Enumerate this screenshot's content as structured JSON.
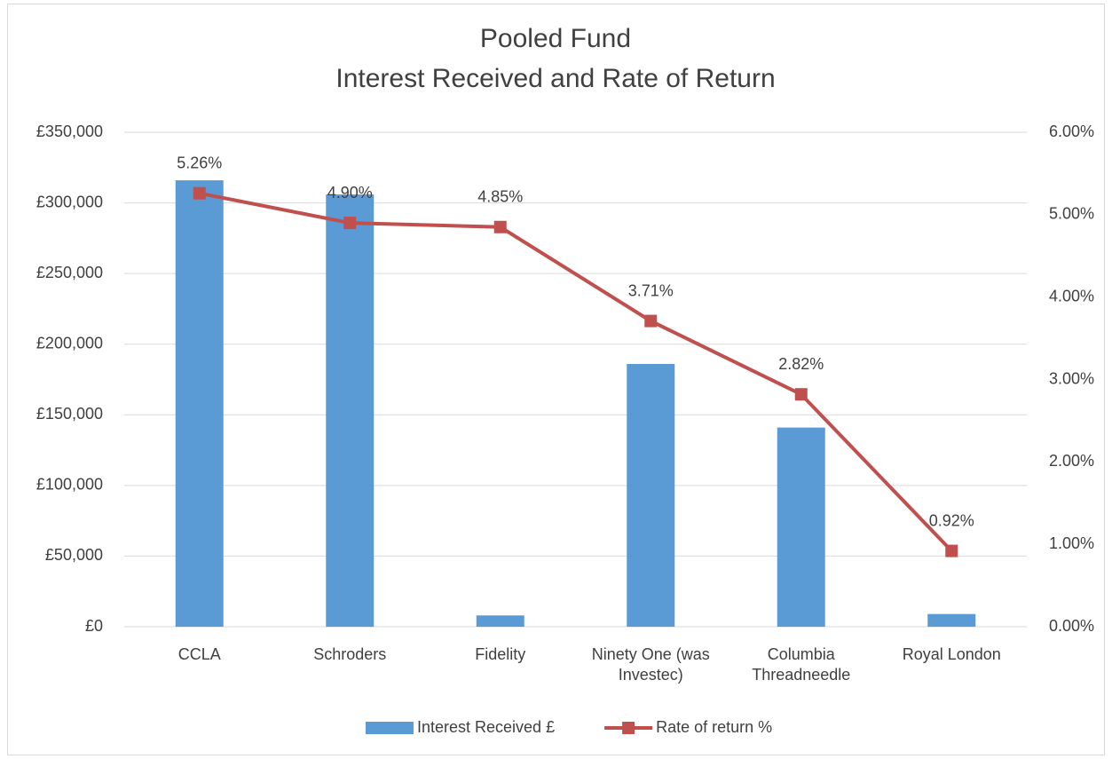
{
  "chart_data": {
    "type": "bar",
    "title": [
      "Pooled Fund",
      "Interest Received and Rate of Return"
    ],
    "categories": [
      "CCLA",
      "Schroders",
      "Fidelity",
      "Ninety One (was Investec)",
      "Columbia Threadneedle",
      "Royal London"
    ],
    "series": [
      {
        "name": "Interest Received £",
        "type": "bar",
        "color": "#5b9bd5",
        "values": [
          316000,
          306000,
          8000,
          186000,
          141000,
          9000
        ]
      },
      {
        "name": "Rate of return %",
        "type": "line",
        "axis": "y2",
        "color": "#c0504d",
        "values": [
          5.26,
          4.9,
          4.85,
          3.71,
          2.82,
          0.92
        ],
        "value_labels": [
          "5.26%",
          "4.90%",
          "4.85%",
          "3.71%",
          "2.82%",
          "0.92%"
        ]
      }
    ],
    "ylim": [
      0,
      350000
    ],
    "yticks": [
      {
        "value": 0,
        "label": "£0"
      },
      {
        "value": 50000,
        "label": "£50,000"
      },
      {
        "value": 100000,
        "label": "£100,000"
      },
      {
        "value": 150000,
        "label": "£150,000"
      },
      {
        "value": 200000,
        "label": "£200,000"
      },
      {
        "value": 250000,
        "label": "£250,000"
      },
      {
        "value": 300000,
        "label": "£300,000"
      },
      {
        "value": 350000,
        "label": "£350,000"
      }
    ],
    "y2lim": [
      0,
      6
    ],
    "y2ticks": [
      {
        "value": 0,
        "label": "0.00%"
      },
      {
        "value": 1,
        "label": "1.00%"
      },
      {
        "value": 2,
        "label": "2.00%"
      },
      {
        "value": 3,
        "label": "3.00%"
      },
      {
        "value": 4,
        "label": "4.00%"
      },
      {
        "value": 5,
        "label": "5.00%"
      },
      {
        "value": 6,
        "label": "6.00%"
      }
    ],
    "grid": true,
    "legend": "bottom"
  }
}
